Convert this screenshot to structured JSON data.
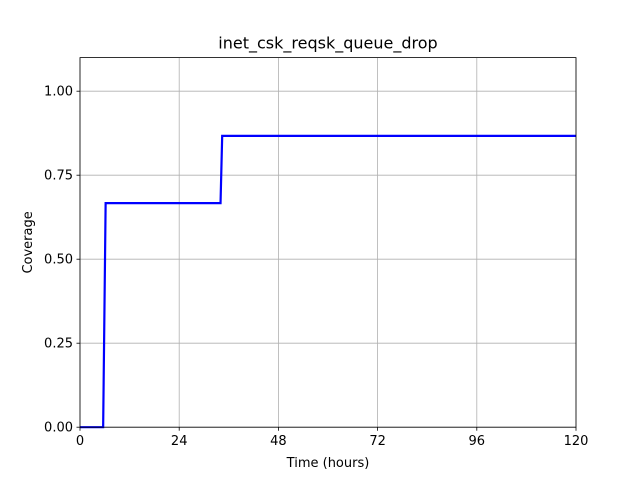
{
  "chart_data": {
    "type": "line",
    "title": "inet_csk_reqsk_queue_drop",
    "xlabel": "Time (hours)",
    "ylabel": "Coverage",
    "xlim": [
      0,
      120
    ],
    "ylim": [
      0,
      1.1
    ],
    "xticks": [
      0,
      24,
      48,
      72,
      96,
      120
    ],
    "xtick_labels": [
      "0",
      "24",
      "48",
      "72",
      "96",
      "120"
    ],
    "yticks": [
      0.0,
      0.25,
      0.5,
      0.75,
      1.0
    ],
    "ytick_labels": [
      "0.00",
      "0.25",
      "0.50",
      "0.75",
      "1.00"
    ],
    "grid": true,
    "series": [
      {
        "color": "#0000ff",
        "x": [
          0,
          5.6,
          6.2,
          34.0,
          34.4,
          120
        ],
        "y": [
          0,
          0,
          0.667,
          0.667,
          0.867,
          0.867
        ]
      }
    ]
  }
}
